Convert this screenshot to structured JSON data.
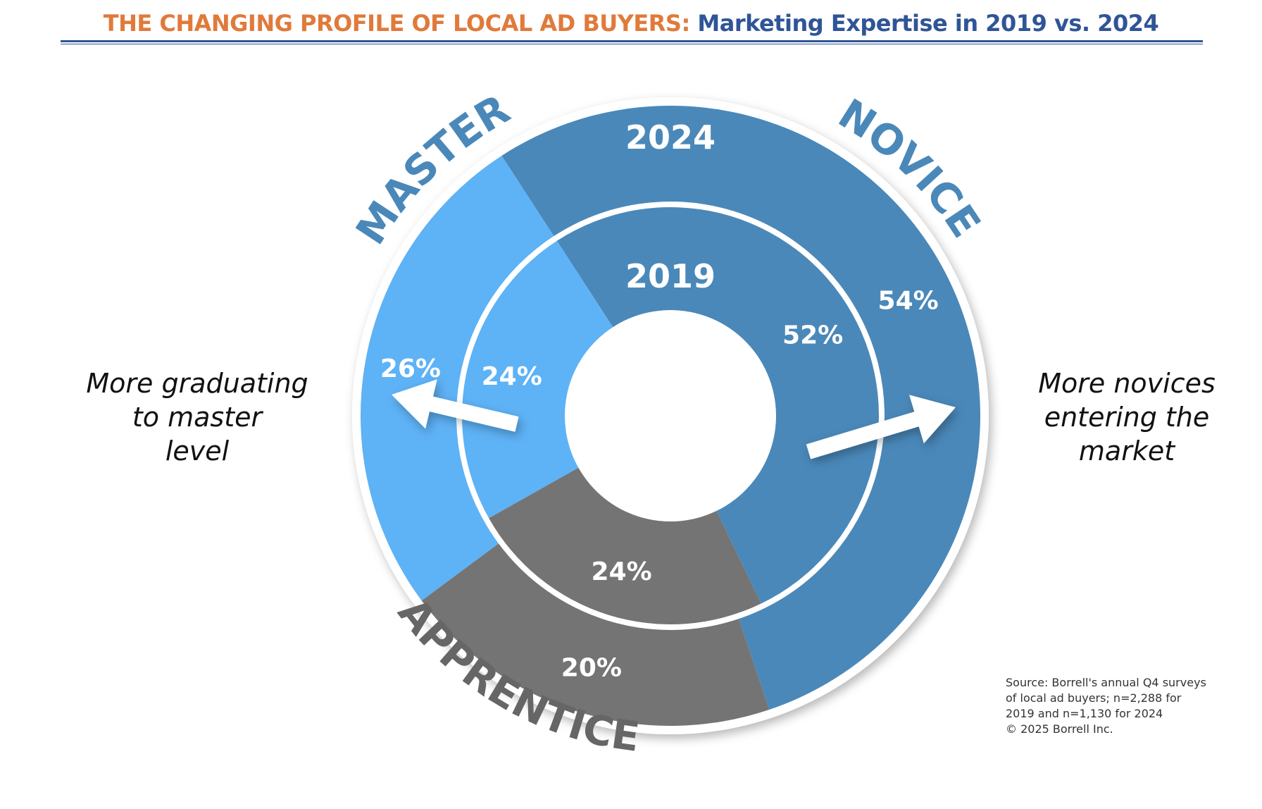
{
  "title": {
    "prefix": "THE CHANGING PROFILE OF LOCAL AD BUYERS:",
    "suffix": "Marketing Expertise in 2019 vs. 2024"
  },
  "chart_data": {
    "type": "pie",
    "subtype": "nested-donut",
    "categories": [
      "NOVICE",
      "APPRENTICE",
      "MASTER"
    ],
    "colors": {
      "NOVICE": "#4A88B9",
      "APPRENTICE": "#747474",
      "MASTER": "#5EB2F6"
    },
    "series": [
      {
        "name": "2024",
        "ring": "outer",
        "values": [
          54,
          20,
          26
        ],
        "labels": [
          "54%",
          "20%",
          "26%"
        ]
      },
      {
        "name": "2019",
        "ring": "inner",
        "values": [
          52,
          24,
          24
        ],
        "labels": [
          "52%",
          "24%",
          "24%"
        ]
      }
    ]
  },
  "annotations": {
    "left": [
      "More graduating",
      "to master",
      "level"
    ],
    "right": [
      "More novices",
      "entering the",
      "market"
    ]
  },
  "source": [
    "Source: Borrell's annual Q4 surveys",
    "of local ad buyers; n=2,288 for",
    "2019 and n=1,130 for 2024",
    "© 2025 Borrell Inc."
  ]
}
